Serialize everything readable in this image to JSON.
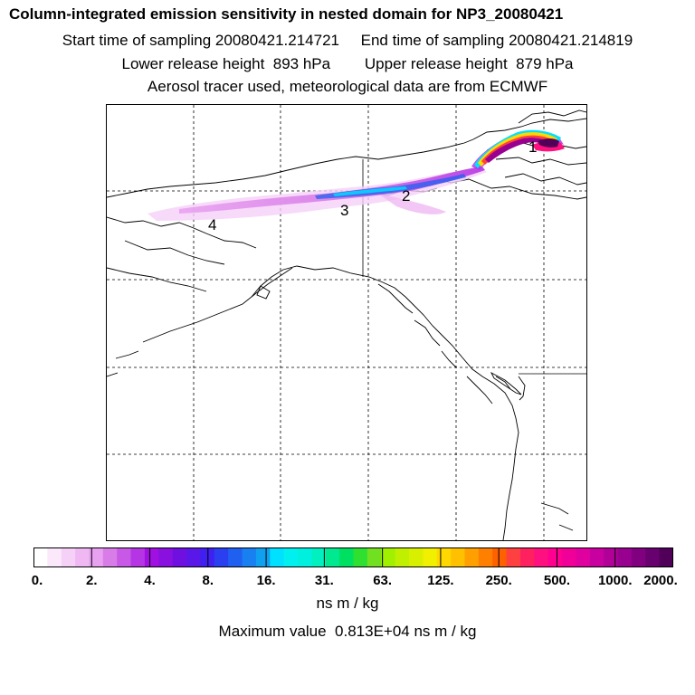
{
  "title": {
    "main": "Column-integrated emission sensitivity in nested domain for NP3_20080421",
    "line2": "Start time of sampling 20080421.214721     End time of sampling 20080421.214819",
    "line3": "Lower release height  893 hPa        Upper release height  879 hPa",
    "line4": "Aerosol tracer used, meteorological data are from ECMWF"
  },
  "map": {
    "point_labels": [
      "1",
      "2",
      "3",
      "4"
    ]
  },
  "colorbar": {
    "labels": [
      "0.",
      "2.",
      "4.",
      "8.",
      "16.",
      "31.",
      "63.",
      "125.",
      "250.",
      "500.",
      "1000.",
      "2000."
    ],
    "colors": [
      "#ffffff",
      "#fbe8fb",
      "#f5d0f7",
      "#efb8f3",
      "#e8a0f0",
      "#d87ce8",
      "#c858e6",
      "#b534e4",
      "#a010e0",
      "#8a10e0",
      "#7010e0",
      "#5a18e8",
      "#3f20f0",
      "#2a40f0",
      "#2060f0",
      "#1880f0",
      "#10a0f0",
      "#00e0ff",
      "#00f0f0",
      "#00f0e0",
      "#00f0c0",
      "#00e890",
      "#00e060",
      "#30e030",
      "#70e020",
      "#a0f000",
      "#c0f000",
      "#d8f000",
      "#f0f000",
      "#ffd800",
      "#ffc000",
      "#ffa000",
      "#ff8000",
      "#ff6000",
      "#ff4040",
      "#ff2060",
      "#ff1080",
      "#ff0090",
      "#f00098",
      "#e000a0",
      "#c800a0",
      "#b00098",
      "#980090",
      "#800080",
      "#680070",
      "#500058"
    ],
    "units": "ns m / kg"
  },
  "footer": {
    "max_value": "Maximum value  0.813E+04 ns m / kg"
  }
}
